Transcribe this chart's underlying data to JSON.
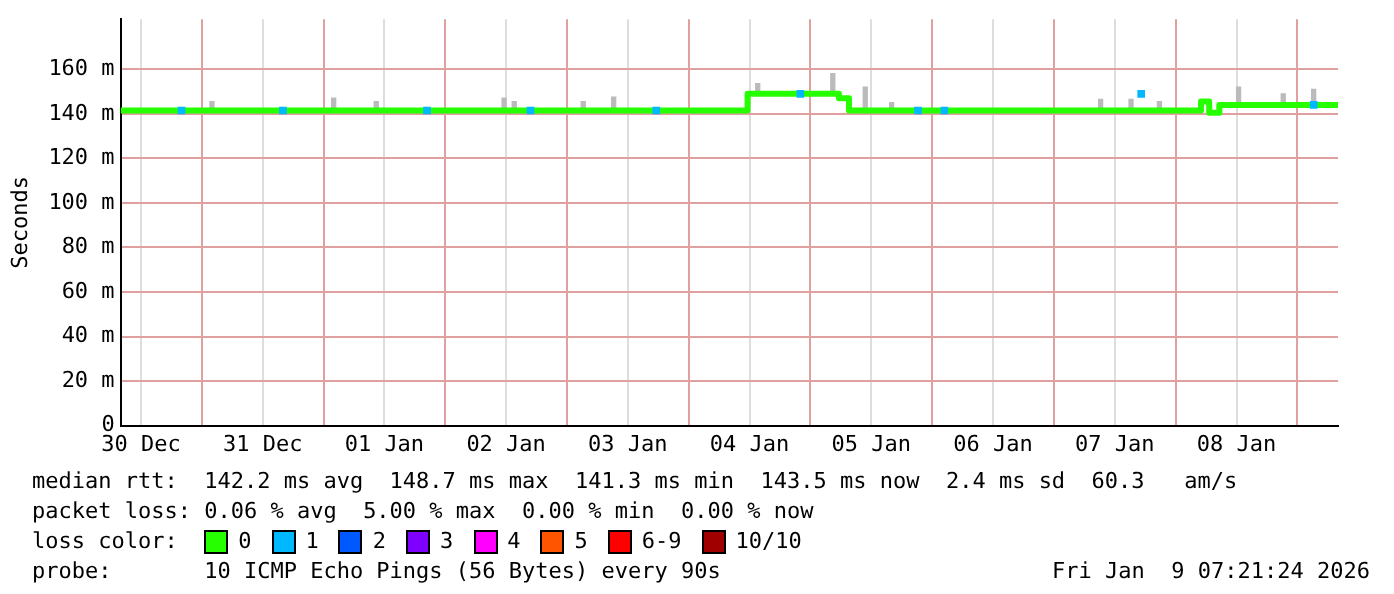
{
  "chart_data": {
    "type": "step",
    "ylabel": "Seconds",
    "legend_title": "loss color:",
    "legend": "bottom",
    "grid": true,
    "xlim": [
      "2025-12-30T08:00",
      "2026-01-09T08:00"
    ],
    "xticks": [
      {
        "value": "2025-12-30T12:00",
        "label": "30 Dec"
      },
      {
        "value": "2025-12-31T00:00",
        "label": null
      },
      {
        "value": "2025-12-31T12:00",
        "label": "31 Dec"
      },
      {
        "value": "2026-01-01T00:00",
        "label": null
      },
      {
        "value": "2026-01-01T12:00",
        "label": "01 Jan"
      },
      {
        "value": "2026-01-02T00:00",
        "label": null
      },
      {
        "value": "2026-01-02T12:00",
        "label": "02 Jan"
      },
      {
        "value": "2026-01-03T00:00",
        "label": null
      },
      {
        "value": "2026-01-03T12:00",
        "label": "03 Jan"
      },
      {
        "value": "2026-01-04T00:00",
        "label": null
      },
      {
        "value": "2026-01-04T12:00",
        "label": "04 Jan"
      },
      {
        "value": "2026-01-05T00:00",
        "label": null
      },
      {
        "value": "2026-01-05T12:00",
        "label": "05 Jan"
      },
      {
        "value": "2026-01-06T00:00",
        "label": null
      },
      {
        "value": "2026-01-06T12:00",
        "label": "06 Jan"
      },
      {
        "value": "2026-01-07T00:00",
        "label": null
      },
      {
        "value": "2026-01-07T12:00",
        "label": "07 Jan"
      },
      {
        "value": "2026-01-08T00:00",
        "label": null
      },
      {
        "value": "2026-01-08T12:00",
        "label": "08 Jan"
      },
      {
        "value": "2026-01-09T00:00",
        "label": null
      }
    ],
    "ylim": [
      0,
      182.5
    ],
    "yticks": [
      0,
      {
        "value": 20,
        "label": "20 m"
      },
      {
        "value": 40,
        "label": "40 m"
      },
      {
        "value": 60,
        "label": "60 m"
      },
      {
        "value": 80,
        "label": "80 m"
      },
      {
        "value": 100,
        "label": "100 m"
      },
      {
        "value": 120,
        "label": "120 m"
      },
      {
        "value": 140,
        "label": "140 m"
      },
      {
        "value": 160,
        "label": "160 m"
      }
    ],
    "series": [
      {
        "type": "bar",
        "color": "#bbbbbb",
        "x": [
          "2025-12-31T02:00",
          "2026-01-01T02:00",
          "2026-01-01T10:24",
          "2026-01-02T11:36",
          "2026-01-02T13:36",
          "2026-01-03T03:12",
          "2026-01-03T09:12",
          "2026-01-04T13:36",
          "2026-01-05T04:24",
          "2026-01-05T10:48",
          "2026-01-05T16:00",
          "2026-01-07T09:12",
          "2026-01-07T15:12",
          "2026-01-07T20:48",
          "2026-01-08T12:24",
          "2026-01-08T21:12",
          "2026-01-09T03:12"
        ],
        "base": [
          141.5,
          141.5,
          141.5,
          141.5,
          141.5,
          141.5,
          141.5,
          149,
          149,
          141.5,
          141.5,
          141.5,
          141.5,
          141.5,
          144,
          144,
          144
        ],
        "values": [
          4,
          5.5,
          4,
          5.5,
          4,
          4,
          6,
          4.5,
          9,
          10.5,
          3.5,
          5,
          5,
          4,
          8,
          5,
          7
        ]
      },
      {
        "name": "0",
        "color": "#26ff00",
        "x": [
          "2025-12-30T08:00",
          "2026-01-04T11:36",
          "2026-01-05T05:36",
          "2026-01-05T07:36",
          "2026-01-08T05:00",
          "2026-01-08T06:36",
          "2026-01-08T08:36",
          "2026-01-09T08:00"
        ],
        "values": [
          141.5,
          149,
          147,
          141.5,
          145.5,
          140.5,
          144,
          144
        ]
      },
      {
        "type": "scatter",
        "name": "1",
        "color": "#00b8ff",
        "x": [
          "2025-12-30T20:00",
          "2025-12-31T16:00",
          "2026-01-01T20:24",
          "2026-01-02T16:48",
          "2026-01-03T17:36",
          "2026-01-04T22:00",
          "2026-01-05T21:12",
          "2026-01-06T02:24",
          "2026-01-07T17:12",
          "2026-01-09T03:12"
        ],
        "values": [
          141.5,
          141.5,
          141.5,
          141.5,
          141.5,
          149,
          141.5,
          141.5,
          149,
          144
        ]
      },
      {
        "type": "scatter",
        "name": "2",
        "color": "#0059ff"
      },
      {
        "type": "scatter",
        "name": "3",
        "color": "#7e00ff"
      },
      {
        "type": "scatter",
        "name": "4",
        "color": "#ff00ff"
      },
      {
        "type": "scatter",
        "name": "5",
        "color": "#ff5500"
      },
      {
        "type": "scatter",
        "name": "6-9",
        "color": "#ff0000"
      },
      {
        "type": "scatter",
        "name": "10/10",
        "color": "#a10000"
      }
    ],
    "annotations": [
      "median rtt:  142.2 ms avg  148.7 ms max  141.3 ms min  143.5 ms now  2.4 ms sd  60.3   am/s",
      "packet loss: 0.06 % avg  5.00 % max  0.00 % min  0.00 % now",
      "probe:       10 ICMP Echo Pings (56 Bytes) every 90s",
      "Fri Jan  9 07:21:24 2026"
    ]
  }
}
